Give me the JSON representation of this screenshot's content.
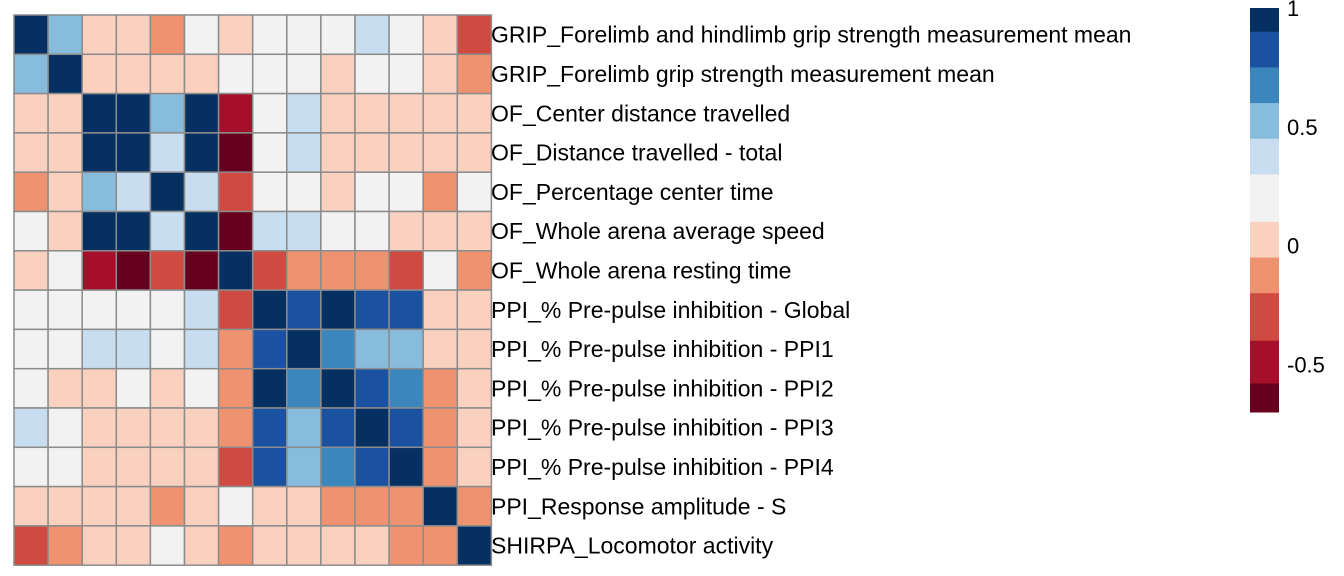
{
  "chart_data": {
    "type": "heatmap",
    "rows": [
      "GRIP_Forelimb and hindlimb grip strength measurement mean",
      "GRIP_Forelimb grip strength measurement mean",
      "OF_Center distance travelled",
      "OF_Distance travelled - total",
      "OF_Percentage center time",
      "OF_Whole arena average speed",
      "OF_Whole arena resting time",
      "PPI_% Pre-pulse inhibition - Global",
      "PPI_% Pre-pulse inhibition - PPI1",
      "PPI_% Pre-pulse inhibition - PPI2",
      "PPI_% Pre-pulse inhibition - PPI3",
      "PPI_% Pre-pulse inhibition - PPI4",
      "PPI_Response amplitude - S",
      "SHIRPA_Locomotor activity"
    ],
    "values": [
      [
        1.0,
        0.5,
        0.05,
        0.05,
        -0.15,
        0.15,
        0.05,
        0.15,
        0.15,
        0.15,
        0.35,
        0.15,
        0.05,
        -0.35
      ],
      [
        0.5,
        1.0,
        0.05,
        0.05,
        0.05,
        0.05,
        0.15,
        0.15,
        0.15,
        0.05,
        0.15,
        0.15,
        0.05,
        -0.15
      ],
      [
        0.05,
        0.05,
        1.0,
        1.0,
        0.5,
        1.0,
        -0.55,
        0.15,
        0.35,
        0.05,
        0.05,
        0.05,
        0.05,
        0.05
      ],
      [
        0.05,
        0.05,
        1.0,
        1.0,
        0.35,
        1.0,
        -0.65,
        0.15,
        0.35,
        0.05,
        0.05,
        0.05,
        0.05,
        0.05
      ],
      [
        -0.15,
        0.05,
        0.5,
        0.35,
        1.0,
        0.35,
        -0.35,
        0.15,
        0.15,
        0.05,
        0.15,
        0.15,
        -0.15,
        0.15
      ],
      [
        0.15,
        0.05,
        1.0,
        1.0,
        0.35,
        1.0,
        -0.65,
        0.35,
        0.35,
        0.15,
        0.15,
        0.05,
        0.05,
        0.05
      ],
      [
        0.05,
        0.15,
        -0.55,
        -0.65,
        -0.35,
        -0.65,
        1.0,
        -0.35,
        -0.15,
        -0.15,
        -0.15,
        -0.35,
        0.15,
        -0.15
      ],
      [
        0.15,
        0.15,
        0.15,
        0.15,
        0.15,
        0.35,
        -0.35,
        1.0,
        0.85,
        1.0,
        0.85,
        0.85,
        0.05,
        0.05
      ],
      [
        0.15,
        0.15,
        0.35,
        0.35,
        0.15,
        0.35,
        -0.15,
        0.85,
        1.0,
        0.7,
        0.5,
        0.5,
        0.05,
        0.05
      ],
      [
        0.15,
        0.05,
        0.05,
        0.15,
        0.05,
        0.15,
        -0.15,
        1.0,
        0.7,
        1.0,
        0.85,
        0.7,
        -0.15,
        0.05
      ],
      [
        0.35,
        0.15,
        0.05,
        0.05,
        0.05,
        0.05,
        -0.15,
        0.85,
        0.5,
        0.85,
        1.0,
        0.85,
        -0.15,
        0.05
      ],
      [
        0.15,
        0.15,
        0.05,
        0.05,
        0.05,
        0.05,
        -0.35,
        0.85,
        0.5,
        0.7,
        0.85,
        1.0,
        -0.15,
        0.05
      ],
      [
        0.05,
        0.05,
        0.05,
        0.05,
        -0.15,
        0.05,
        0.15,
        0.05,
        0.05,
        -0.15,
        -0.15,
        -0.15,
        1.0,
        -0.15
      ],
      [
        -0.35,
        -0.15,
        0.05,
        0.05,
        0.15,
        0.05,
        -0.15,
        0.05,
        0.05,
        0.05,
        0.05,
        -0.15,
        -0.15,
        1.0
      ]
    ],
    "legend": {
      "ticks": [
        "1",
        "0.5",
        "0",
        "-0.5"
      ],
      "tick_values": [
        1,
        0.5,
        0,
        -0.5
      ],
      "range": [
        -0.7,
        1.0
      ],
      "bins": [
        {
          "from": 0.9,
          "to": 1.0,
          "color": "#053061"
        },
        {
          "from": 0.75,
          "to": 0.9,
          "color": "#1a51a0"
        },
        {
          "from": 0.6,
          "to": 0.75,
          "color": "#3a86bd"
        },
        {
          "from": 0.45,
          "to": 0.6,
          "color": "#87bcdc"
        },
        {
          "from": 0.3,
          "to": 0.45,
          "color": "#c8def0"
        },
        {
          "from": 0.1,
          "to": 0.3,
          "color": "#f2f2f2"
        },
        {
          "from": -0.05,
          "to": 0.1,
          "color": "#fad1bf"
        },
        {
          "from": -0.2,
          "to": -0.05,
          "color": "#ef9270"
        },
        {
          "from": -0.4,
          "to": -0.2,
          "color": "#cf4b42"
        },
        {
          "from": -0.58,
          "to": -0.4,
          "color": "#a50f2a"
        },
        {
          "from": -0.7,
          "to": -0.58,
          "color": "#67001f"
        }
      ]
    },
    "cell_border_color": "#8c8c8c"
  }
}
